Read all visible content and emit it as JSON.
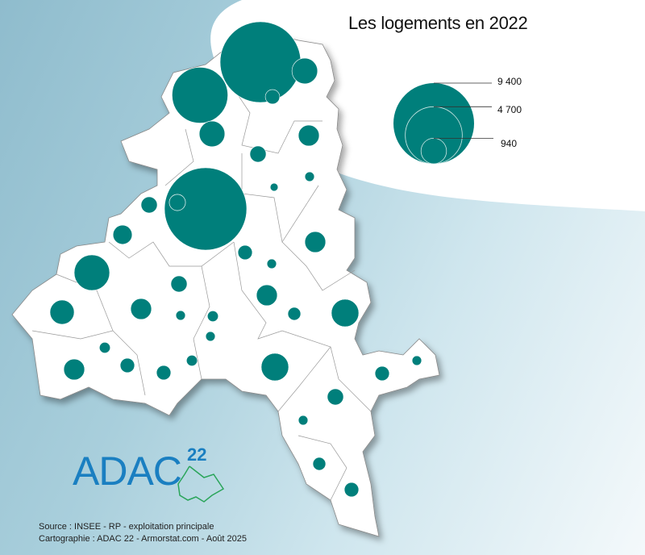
{
  "title": "Les logements en 2022",
  "legend": {
    "values": [
      9400,
      4700,
      940
    ],
    "labels": [
      "9 400",
      "4 700",
      "940"
    ]
  },
  "colors": {
    "circle": "#007f7b",
    "territory": "#ffffff",
    "logo_blue": "#1a7fc1",
    "logo_green": "#2aa55a"
  },
  "communes_logements": [
    9400,
    4500,
    950,
    300,
    950,
    630,
    380,
    130,
    90,
    9780,
    380,
    530,
    630,
    300,
    130,
    1820,
    380,
    630,
    850,
    630,
    130,
    170,
    240,
    1090,
    130,
    170,
    300,
    170,
    300,
    1090,
    630,
    300,
    130,
    380,
    130,
    240,
    300
  ],
  "logo": {
    "name": "ADAC",
    "sup": "22"
  },
  "source": "Source : INSEE - RP - exploitation principale",
  "credits": "Cartographie : ADAC 22 - Armorstat.com - Août 2025"
}
